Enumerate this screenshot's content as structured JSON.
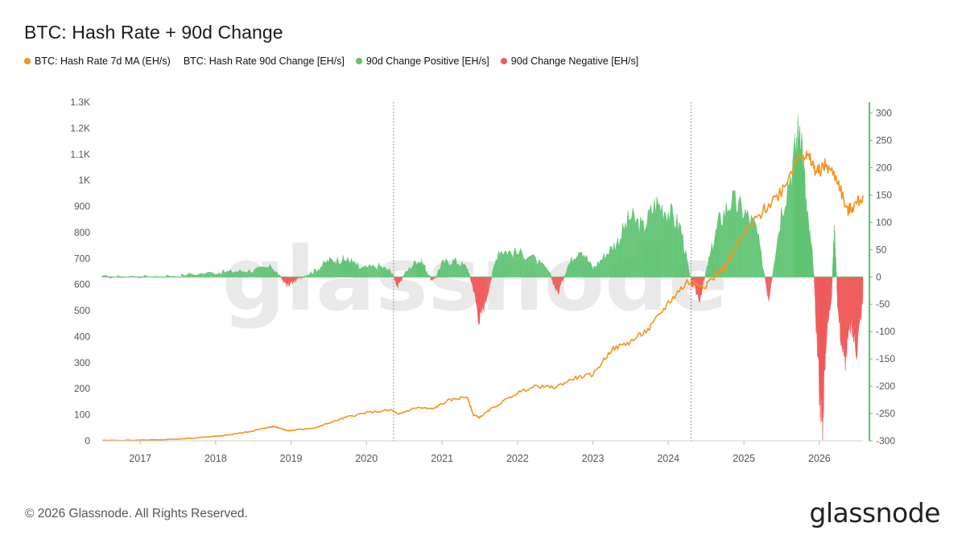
{
  "title": "BTC: Hash Rate + 90d Change",
  "legend": [
    {
      "label": "BTC: Hash Rate 7d MA (EH/s)",
      "color": "#f7931a"
    },
    {
      "label": "BTC: Hash Rate 90d Change [EH/s]",
      "color": ""
    },
    {
      "label": "90d Change Positive [EH/s]",
      "color": "#5ac26f"
    },
    {
      "label": "90d Change Negative [EH/s]",
      "color": "#f05a5a"
    }
  ],
  "footer": "© 2026 Glassnode. All Rights Reserved.",
  "brand": "glassnode",
  "watermark": "glassnode",
  "chart_data": {
    "type": "line",
    "x_range": [
      "2016-07-01",
      "2026-07-31"
    ],
    "x_ticks": [
      "2017",
      "2018",
      "2019",
      "2020",
      "2021",
      "2022",
      "2023",
      "2024",
      "2025",
      "2026"
    ],
    "y_left": {
      "range": [
        0,
        1300
      ],
      "ticks": [
        0,
        100,
        200,
        300,
        400,
        500,
        600,
        700,
        800,
        900,
        1000,
        1100,
        1200,
        1300
      ],
      "tick_labels": [
        "0",
        "100",
        "200",
        "300",
        "400",
        "500",
        "600",
        "700",
        "800",
        "900",
        "1K",
        "1.1K",
        "1.2K",
        "1.3K"
      ]
    },
    "y_right": {
      "range": [
        -300,
        320
      ],
      "ticks": [
        -300,
        -250,
        -200,
        -150,
        -100,
        -50,
        0,
        50,
        100,
        150,
        200,
        250,
        300
      ],
      "tick_labels": [
        "-300",
        "-250",
        "-200",
        "-150",
        "-100",
        "-50",
        "0",
        "50",
        "100",
        "150",
        "200",
        "250",
        "300"
      ]
    },
    "halving_lines": [
      "2020-05-11",
      "2024-04-20"
    ],
    "grid": false,
    "series": [
      {
        "name": "BTC: Hash Rate 7d MA (EH/s)",
        "axis": "left",
        "color": "#f7931a",
        "points": [
          [
            "2016-07-01",
            1.4
          ],
          [
            "2017-01-01",
            2.5
          ],
          [
            "2017-07-01",
            6
          ],
          [
            "2018-01-01",
            17
          ],
          [
            "2018-04-01",
            26
          ],
          [
            "2018-07-01",
            38
          ],
          [
            "2018-09-01",
            50
          ],
          [
            "2018-10-15",
            55
          ],
          [
            "2018-11-20",
            46
          ],
          [
            "2018-12-20",
            38
          ],
          [
            "2019-02-01",
            43
          ],
          [
            "2019-05-01",
            50
          ],
          [
            "2019-07-01",
            68
          ],
          [
            "2019-10-01",
            92
          ],
          [
            "2020-01-01",
            108
          ],
          [
            "2020-05-01",
            118
          ],
          [
            "2020-06-01",
            102
          ],
          [
            "2020-09-01",
            128
          ],
          [
            "2020-11-15",
            122
          ],
          [
            "2021-02-01",
            155
          ],
          [
            "2021-05-01",
            170
          ],
          [
            "2021-06-01",
            100
          ],
          [
            "2021-07-01",
            90
          ],
          [
            "2021-09-01",
            125
          ],
          [
            "2022-01-01",
            185
          ],
          [
            "2022-04-01",
            210
          ],
          [
            "2022-07-01",
            205
          ],
          [
            "2022-10-01",
            240
          ],
          [
            "2023-01-01",
            255
          ],
          [
            "2023-04-01",
            350
          ],
          [
            "2023-07-01",
            380
          ],
          [
            "2023-10-01",
            430
          ],
          [
            "2024-01-01",
            530
          ],
          [
            "2024-04-01",
            610
          ],
          [
            "2024-07-01",
            600
          ],
          [
            "2024-10-01",
            670
          ],
          [
            "2025-01-01",
            790
          ],
          [
            "2025-04-01",
            880
          ],
          [
            "2025-07-01",
            960
          ],
          [
            "2025-10-01",
            1110
          ],
          [
            "2025-11-15",
            1080
          ],
          [
            "2025-12-20",
            1030
          ],
          [
            "2026-02-01",
            1060
          ],
          [
            "2026-04-01",
            1000
          ],
          [
            "2026-05-15",
            880
          ],
          [
            "2026-06-15",
            900
          ],
          [
            "2026-07-31",
            935
          ]
        ]
      },
      {
        "name": "BTC: Hash Rate 90d Change [EH/s]",
        "axis": "right",
        "color": "#5ac26f",
        "negative_color": "#f05a5a",
        "points": [
          [
            "2016-07-01",
            0
          ],
          [
            "2017-01-01",
            1
          ],
          [
            "2017-07-01",
            3
          ],
          [
            "2018-01-01",
            8
          ],
          [
            "2018-04-01",
            10
          ],
          [
            "2018-07-01",
            12
          ],
          [
            "2018-10-01",
            18
          ],
          [
            "2018-11-20",
            -5
          ],
          [
            "2018-12-15",
            -15
          ],
          [
            "2019-01-15",
            -8
          ],
          [
            "2019-03-01",
            2
          ],
          [
            "2019-05-01",
            12
          ],
          [
            "2019-07-01",
            30
          ],
          [
            "2019-09-01",
            32
          ],
          [
            "2019-10-15",
            30
          ],
          [
            "2019-12-01",
            15
          ],
          [
            "2020-03-01",
            20
          ],
          [
            "2020-05-01",
            10
          ],
          [
            "2020-06-01",
            -18
          ],
          [
            "2020-07-01",
            5
          ],
          [
            "2020-09-01",
            30
          ],
          [
            "2020-10-01",
            25
          ],
          [
            "2020-11-15",
            -10
          ],
          [
            "2021-01-01",
            25
          ],
          [
            "2021-03-01",
            30
          ],
          [
            "2021-05-01",
            18
          ],
          [
            "2021-06-01",
            -20
          ],
          [
            "2021-07-01",
            -80
          ],
          [
            "2021-08-01",
            -40
          ],
          [
            "2021-10-01",
            50
          ],
          [
            "2021-12-01",
            45
          ],
          [
            "2022-03-01",
            40
          ],
          [
            "2022-06-01",
            10
          ],
          [
            "2022-07-15",
            -30
          ],
          [
            "2022-09-01",
            20
          ],
          [
            "2022-11-01",
            55
          ],
          [
            "2023-01-01",
            15
          ],
          [
            "2023-03-01",
            40
          ],
          [
            "2023-05-01",
            65
          ],
          [
            "2023-07-01",
            110
          ],
          [
            "2023-09-01",
            90
          ],
          [
            "2023-11-01",
            135
          ],
          [
            "2024-01-01",
            120
          ],
          [
            "2024-03-01",
            90
          ],
          [
            "2024-04-20",
            -10
          ],
          [
            "2024-06-01",
            -40
          ],
          [
            "2024-07-15",
            30
          ],
          [
            "2024-09-01",
            100
          ],
          [
            "2024-11-01",
            140
          ],
          [
            "2025-01-01",
            120
          ],
          [
            "2025-03-01",
            90
          ],
          [
            "2025-05-01",
            -40
          ],
          [
            "2025-07-01",
            120
          ],
          [
            "2025-09-01",
            220
          ],
          [
            "2025-10-01",
            290
          ],
          [
            "2025-11-01",
            120
          ],
          [
            "2025-12-01",
            30
          ],
          [
            "2026-01-01",
            -200
          ],
          [
            "2026-01-15",
            -270
          ],
          [
            "2026-02-01",
            -120
          ],
          [
            "2026-03-01",
            -30
          ],
          [
            "2026-03-15",
            90
          ],
          [
            "2026-04-01",
            -60
          ],
          [
            "2026-05-01",
            -160
          ],
          [
            "2026-06-01",
            -90
          ],
          [
            "2026-07-01",
            -130
          ],
          [
            "2026-07-31",
            -40
          ]
        ]
      }
    ]
  }
}
